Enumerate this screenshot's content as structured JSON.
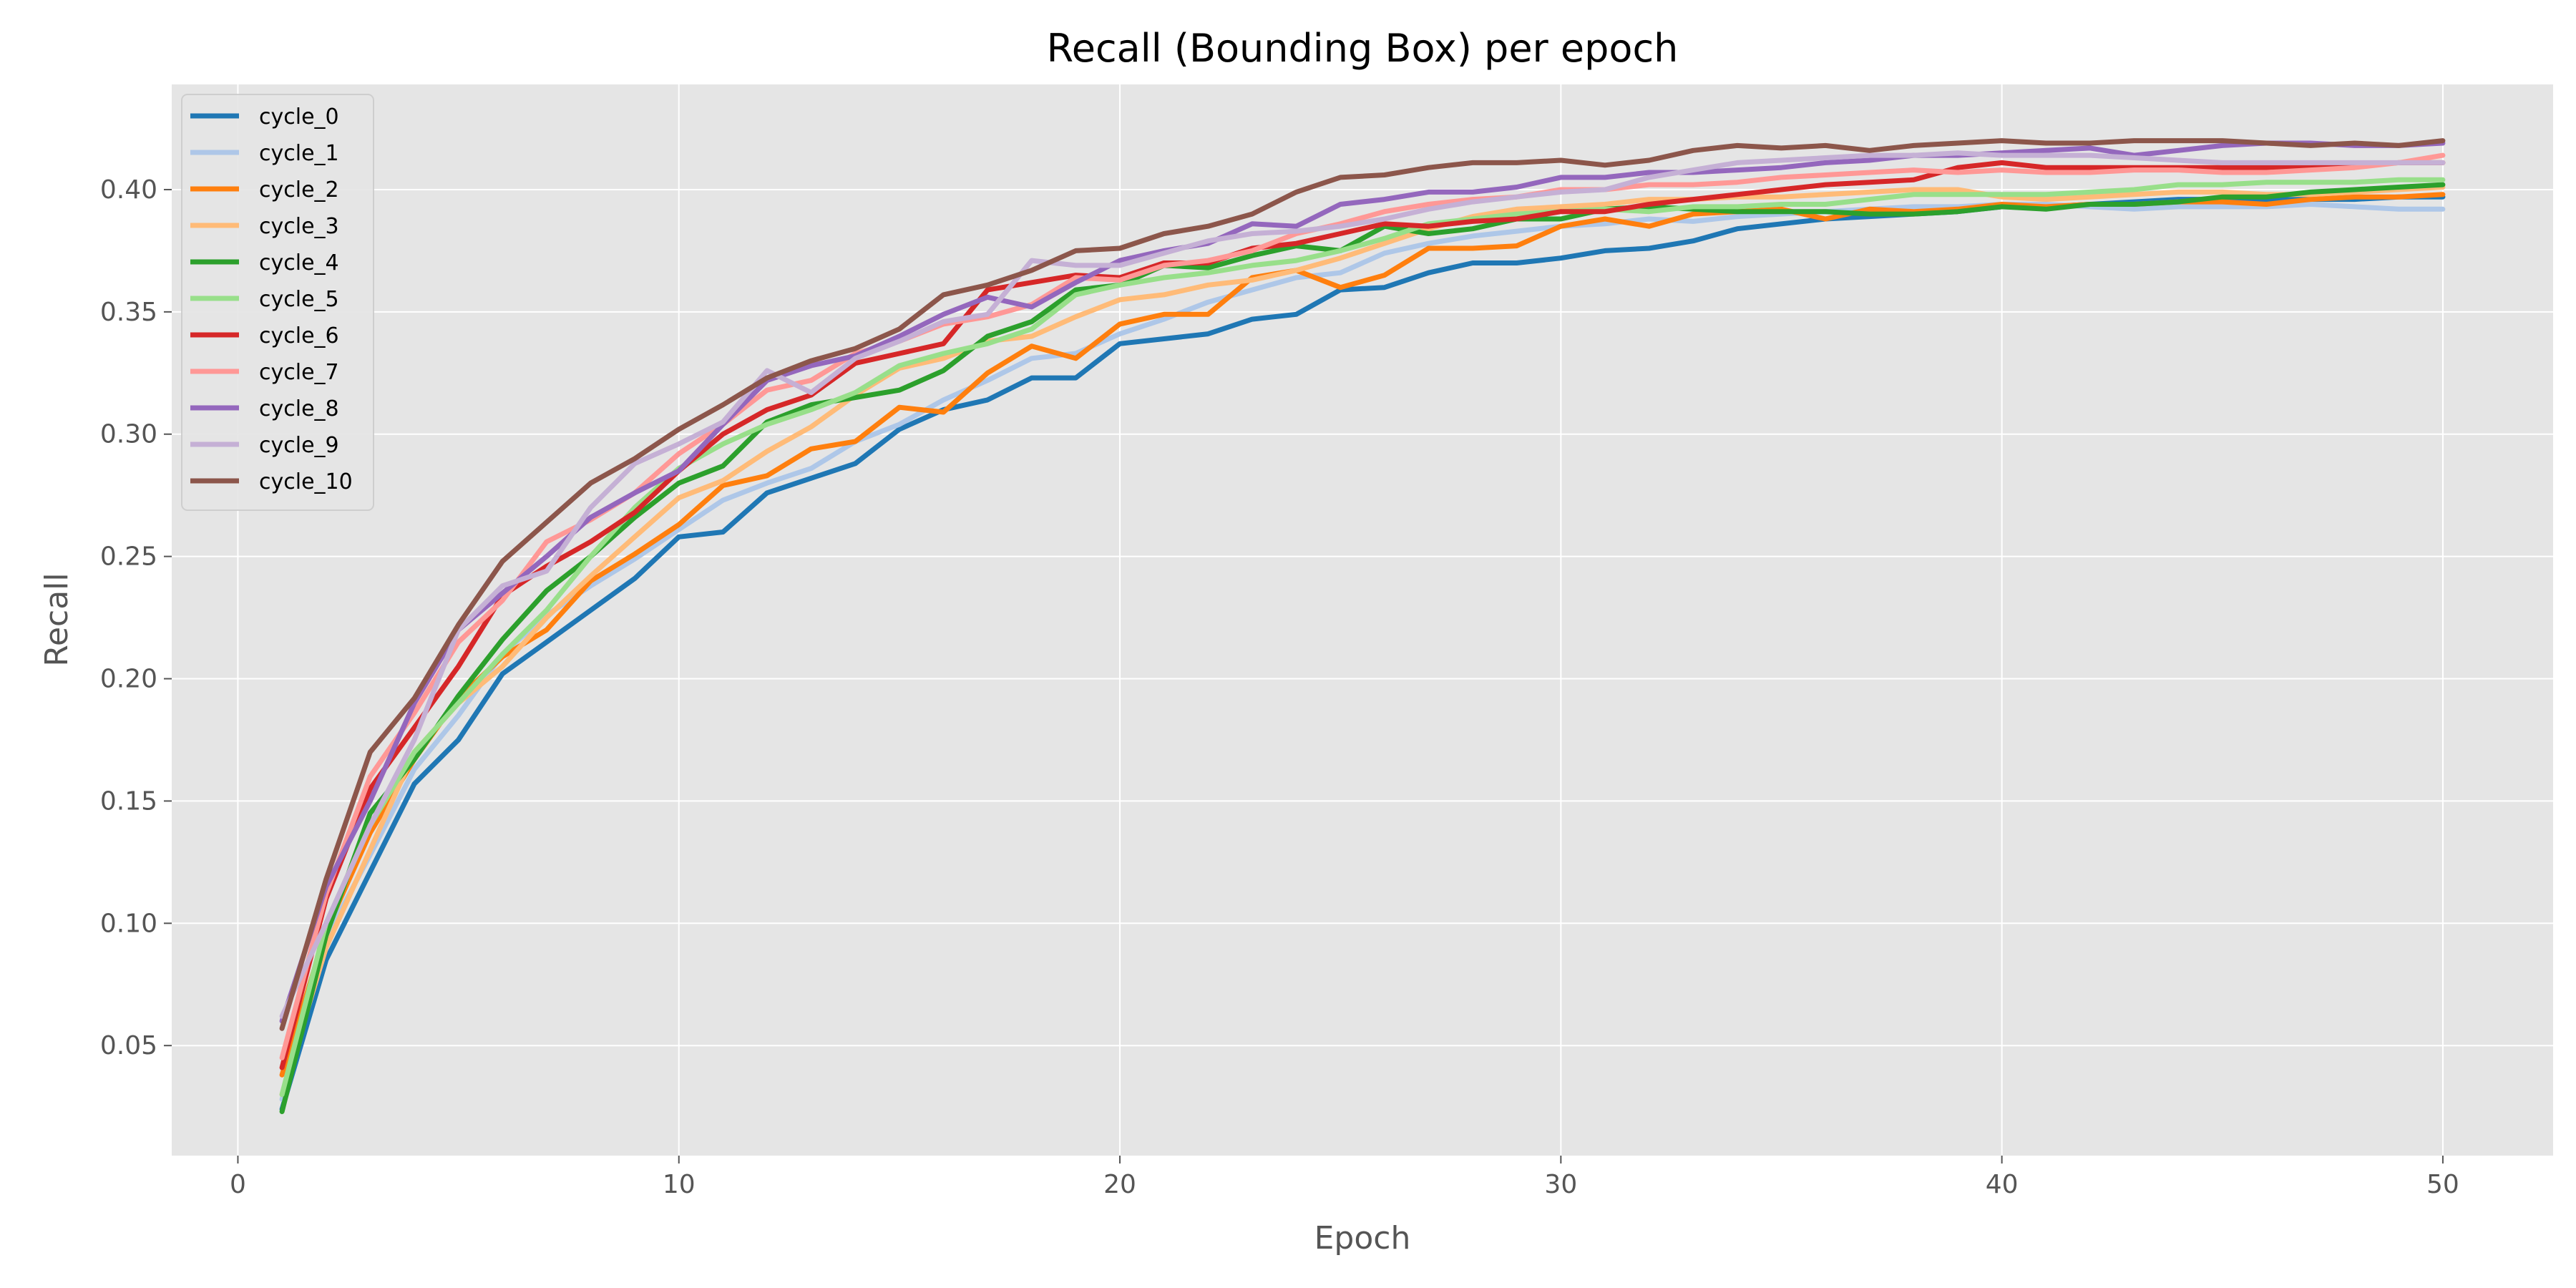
{
  "chart_data": {
    "type": "line",
    "title": "Recall (Bounding Box) per epoch",
    "xlabel": "Epoch",
    "ylabel": "Recall",
    "xlim": [
      -1.5,
      52.5
    ],
    "ylim": [
      0.005,
      0.443
    ],
    "xticks": [
      0,
      10,
      20,
      30,
      40,
      50
    ],
    "yticks": [
      0.05,
      0.1,
      0.15,
      0.2,
      0.25,
      0.3,
      0.35,
      0.4
    ],
    "ytick_labels": [
      "0.05",
      "0.10",
      "0.15",
      "0.20",
      "0.25",
      "0.30",
      "0.35",
      "0.40"
    ],
    "xtick_labels": [
      "0",
      "10",
      "20",
      "30",
      "40",
      "50"
    ],
    "grid": true,
    "legend_position": "top-left",
    "x": [
      1,
      2,
      3,
      4,
      5,
      6,
      7,
      8,
      9,
      10,
      11,
      12,
      13,
      14,
      15,
      16,
      17,
      18,
      19,
      20,
      21,
      22,
      23,
      24,
      25,
      26,
      27,
      28,
      29,
      30,
      31,
      32,
      33,
      34,
      35,
      36,
      37,
      38,
      39,
      40,
      41,
      42,
      43,
      44,
      45,
      46,
      47,
      48,
      49,
      50
    ],
    "series": [
      {
        "name": "cycle_0",
        "color": "#1f77b4",
        "values": [
          0.024,
          0.085,
          0.121,
          0.157,
          0.175,
          0.202,
          0.215,
          0.228,
          0.241,
          0.258,
          0.26,
          0.276,
          0.282,
          0.288,
          0.302,
          0.31,
          0.314,
          0.323,
          0.323,
          0.337,
          0.339,
          0.341,
          0.347,
          0.349,
          0.359,
          0.36,
          0.366,
          0.37,
          0.37,
          0.372,
          0.375,
          0.376,
          0.379,
          0.384,
          0.386,
          0.388,
          0.389,
          0.39,
          0.391,
          0.393,
          0.393,
          0.394,
          0.395,
          0.396,
          0.396,
          0.396,
          0.396,
          0.396,
          0.397,
          0.397
        ]
      },
      {
        "name": "cycle_1",
        "color": "#aec7e8",
        "values": [
          0.028,
          0.094,
          0.128,
          0.163,
          0.185,
          0.21,
          0.226,
          0.238,
          0.249,
          0.261,
          0.273,
          0.28,
          0.286,
          0.297,
          0.304,
          0.314,
          0.322,
          0.331,
          0.333,
          0.341,
          0.347,
          0.354,
          0.359,
          0.364,
          0.366,
          0.374,
          0.378,
          0.381,
          0.383,
          0.385,
          0.386,
          0.388,
          0.387,
          0.389,
          0.39,
          0.391,
          0.392,
          0.393,
          0.393,
          0.394,
          0.394,
          0.393,
          0.392,
          0.393,
          0.393,
          0.393,
          0.394,
          0.393,
          0.392,
          0.392
        ]
      },
      {
        "name": "cycle_2",
        "color": "#ff7f0e",
        "values": [
          0.038,
          0.097,
          0.137,
          0.167,
          0.192,
          0.209,
          0.22,
          0.24,
          0.251,
          0.263,
          0.279,
          0.283,
          0.294,
          0.297,
          0.311,
          0.309,
          0.325,
          0.336,
          0.331,
          0.345,
          0.349,
          0.349,
          0.364,
          0.367,
          0.36,
          0.365,
          0.376,
          0.376,
          0.377,
          0.385,
          0.388,
          0.385,
          0.39,
          0.391,
          0.392,
          0.388,
          0.392,
          0.391,
          0.392,
          0.394,
          0.393,
          0.394,
          0.394,
          0.395,
          0.395,
          0.394,
          0.396,
          0.397,
          0.397,
          0.398
        ]
      },
      {
        "name": "cycle_3",
        "color": "#ffbb78",
        "values": [
          0.03,
          0.09,
          0.13,
          0.17,
          0.19,
          0.205,
          0.225,
          0.242,
          0.258,
          0.274,
          0.281,
          0.293,
          0.303,
          0.316,
          0.327,
          0.331,
          0.338,
          0.34,
          0.348,
          0.355,
          0.357,
          0.361,
          0.363,
          0.367,
          0.372,
          0.378,
          0.384,
          0.389,
          0.392,
          0.393,
          0.394,
          0.396,
          0.396,
          0.397,
          0.397,
          0.398,
          0.399,
          0.4,
          0.4,
          0.397,
          0.396,
          0.397,
          0.398,
          0.399,
          0.399,
          0.398,
          0.398,
          0.399,
          0.4,
          0.401
        ]
      },
      {
        "name": "cycle_4",
        "color": "#2ca02c",
        "values": [
          0.023,
          0.095,
          0.145,
          0.167,
          0.193,
          0.216,
          0.236,
          0.25,
          0.266,
          0.28,
          0.287,
          0.305,
          0.312,
          0.315,
          0.318,
          0.326,
          0.34,
          0.346,
          0.359,
          0.361,
          0.369,
          0.368,
          0.373,
          0.377,
          0.375,
          0.385,
          0.382,
          0.384,
          0.388,
          0.388,
          0.392,
          0.393,
          0.392,
          0.391,
          0.391,
          0.391,
          0.39,
          0.39,
          0.391,
          0.393,
          0.392,
          0.394,
          0.394,
          0.395,
          0.397,
          0.397,
          0.399,
          0.4,
          0.401,
          0.402
        ]
      },
      {
        "name": "cycle_5",
        "color": "#98df8a",
        "values": [
          0.03,
          0.1,
          0.14,
          0.17,
          0.19,
          0.21,
          0.228,
          0.25,
          0.27,
          0.286,
          0.296,
          0.304,
          0.31,
          0.317,
          0.328,
          0.333,
          0.337,
          0.343,
          0.357,
          0.361,
          0.364,
          0.366,
          0.369,
          0.371,
          0.375,
          0.38,
          0.386,
          0.388,
          0.39,
          0.391,
          0.392,
          0.391,
          0.393,
          0.393,
          0.394,
          0.394,
          0.396,
          0.398,
          0.398,
          0.398,
          0.398,
          0.399,
          0.4,
          0.402,
          0.402,
          0.403,
          0.403,
          0.403,
          0.404,
          0.404
        ]
      },
      {
        "name": "cycle_6",
        "color": "#d62728",
        "values": [
          0.041,
          0.11,
          0.155,
          0.18,
          0.205,
          0.234,
          0.246,
          0.256,
          0.268,
          0.285,
          0.3,
          0.31,
          0.316,
          0.329,
          0.333,
          0.337,
          0.359,
          0.362,
          0.365,
          0.364,
          0.37,
          0.37,
          0.376,
          0.378,
          0.382,
          0.386,
          0.385,
          0.387,
          0.388,
          0.391,
          0.391,
          0.394,
          0.396,
          0.398,
          0.4,
          0.402,
          0.403,
          0.404,
          0.409,
          0.411,
          0.409,
          0.409,
          0.409,
          0.409,
          0.409,
          0.409,
          0.409,
          0.41,
          0.411,
          0.411
        ]
      },
      {
        "name": "cycle_7",
        "color": "#ff9896",
        "values": [
          0.045,
          0.112,
          0.16,
          0.186,
          0.215,
          0.232,
          0.256,
          0.265,
          0.276,
          0.292,
          0.304,
          0.318,
          0.322,
          0.333,
          0.338,
          0.345,
          0.348,
          0.353,
          0.364,
          0.363,
          0.369,
          0.371,
          0.375,
          0.382,
          0.386,
          0.391,
          0.394,
          0.396,
          0.397,
          0.4,
          0.4,
          0.402,
          0.402,
          0.403,
          0.405,
          0.406,
          0.407,
          0.408,
          0.407,
          0.408,
          0.407,
          0.407,
          0.408,
          0.408,
          0.407,
          0.407,
          0.408,
          0.409,
          0.411,
          0.414
        ]
      },
      {
        "name": "cycle_8",
        "color": "#9467bd",
        "values": [
          0.06,
          0.115,
          0.15,
          0.19,
          0.22,
          0.235,
          0.25,
          0.266,
          0.276,
          0.285,
          0.304,
          0.322,
          0.328,
          0.332,
          0.34,
          0.349,
          0.356,
          0.352,
          0.362,
          0.371,
          0.375,
          0.378,
          0.386,
          0.385,
          0.394,
          0.396,
          0.399,
          0.399,
          0.401,
          0.405,
          0.405,
          0.407,
          0.407,
          0.408,
          0.409,
          0.411,
          0.412,
          0.414,
          0.414,
          0.415,
          0.416,
          0.417,
          0.414,
          0.416,
          0.418,
          0.419,
          0.419,
          0.418,
          0.418,
          0.419
        ]
      },
      {
        "name": "cycle_9",
        "color": "#c5b0d5",
        "values": [
          0.062,
          0.1,
          0.14,
          0.175,
          0.22,
          0.238,
          0.244,
          0.27,
          0.288,
          0.296,
          0.305,
          0.326,
          0.317,
          0.331,
          0.338,
          0.346,
          0.349,
          0.371,
          0.369,
          0.369,
          0.374,
          0.379,
          0.382,
          0.383,
          0.385,
          0.388,
          0.392,
          0.395,
          0.397,
          0.399,
          0.4,
          0.405,
          0.408,
          0.411,
          0.412,
          0.413,
          0.414,
          0.414,
          0.415,
          0.414,
          0.414,
          0.414,
          0.413,
          0.412,
          0.411,
          0.411,
          0.411,
          0.411,
          0.411,
          0.411
        ]
      },
      {
        "name": "cycle_10",
        "color": "#8c564b",
        "values": [
          0.057,
          0.118,
          0.17,
          0.192,
          0.222,
          0.248,
          0.264,
          0.28,
          0.29,
          0.302,
          0.312,
          0.323,
          0.33,
          0.335,
          0.343,
          0.357,
          0.361,
          0.367,
          0.375,
          0.376,
          0.382,
          0.385,
          0.39,
          0.399,
          0.405,
          0.406,
          0.409,
          0.411,
          0.411,
          0.412,
          0.41,
          0.412,
          0.416,
          0.418,
          0.417,
          0.418,
          0.416,
          0.418,
          0.419,
          0.42,
          0.419,
          0.419,
          0.42,
          0.42,
          0.42,
          0.419,
          0.418,
          0.419,
          0.418,
          0.42
        ]
      }
    ]
  }
}
